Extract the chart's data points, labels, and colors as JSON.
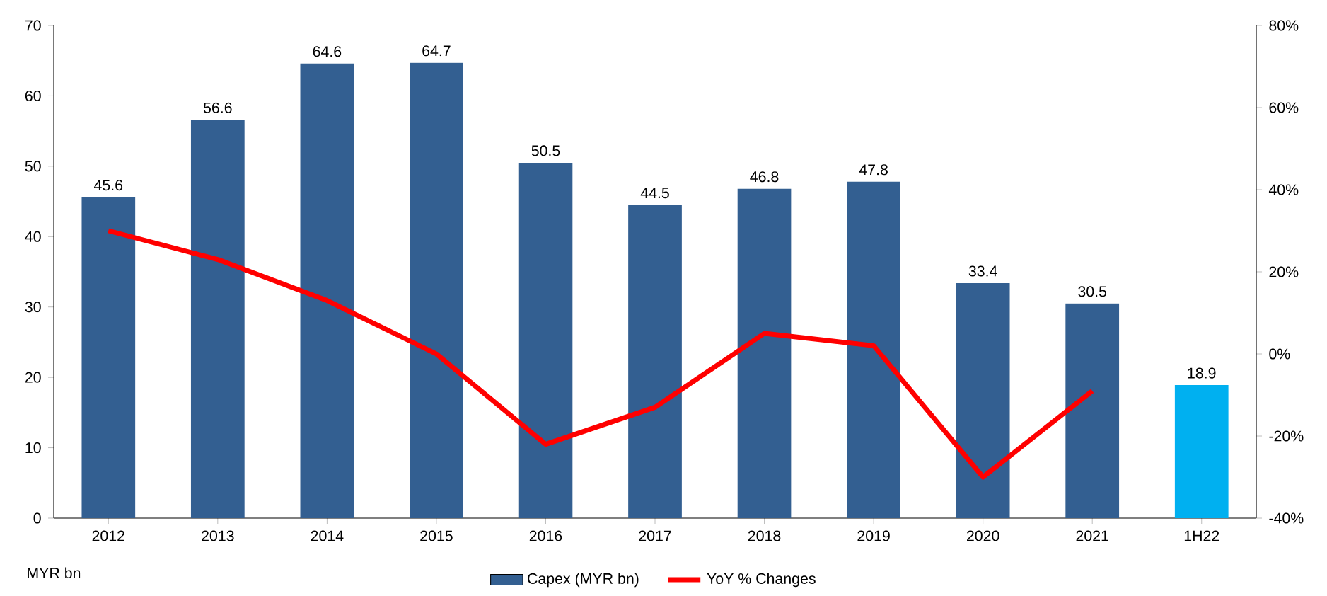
{
  "chart_data": {
    "type": "bar",
    "categories": [
      "2012",
      "2013",
      "2014",
      "2015",
      "2016",
      "2017",
      "2018",
      "2019",
      "2020",
      "2021",
      "1H22"
    ],
    "series": [
      {
        "name": "Capex (MYR bn)",
        "color": "#335f91",
        "colors": [
          "#335f91",
          "#335f91",
          "#335f91",
          "#335f91",
          "#335f91",
          "#335f91",
          "#335f91",
          "#335f91",
          "#335f91",
          "#335f91",
          "#00b0f0"
        ],
        "values": [
          45.6,
          56.6,
          64.6,
          64.7,
          50.5,
          44.5,
          46.8,
          47.8,
          33.4,
          30.5,
          18.9
        ],
        "value_labels": [
          "45.6",
          "56.6",
          "64.6",
          "64.7",
          "50.5",
          "44.5",
          "46.8",
          "47.8",
          "33.4",
          "30.5",
          "18.9"
        ]
      },
      {
        "name": "YoY % Changes",
        "type": "line",
        "axis": "y2",
        "color": "#ff0000",
        "values": [
          30,
          23,
          13,
          0,
          -22,
          -13,
          5,
          2,
          -30,
          -9,
          null
        ]
      }
    ],
    "ylim": [
      0,
      70
    ],
    "yticks": [
      0,
      10,
      20,
      30,
      40,
      50,
      60,
      70
    ],
    "y2lim": [
      -40,
      80
    ],
    "y2ticks": [
      {
        "value": -40,
        "label": "-40%"
      },
      {
        "value": -20,
        "label": "-20%"
      },
      {
        "value": 0,
        "label": "0%"
      },
      {
        "value": 20,
        "label": "20%"
      },
      {
        "value": 40,
        "label": "40%"
      },
      {
        "value": 60,
        "label": "60%"
      },
      {
        "value": 80,
        "label": "80%"
      }
    ],
    "legend": "bottom",
    "grid": false,
    "marker": "none",
    "line_style": "solid",
    "annotations": [
      "MYR bn"
    ]
  }
}
